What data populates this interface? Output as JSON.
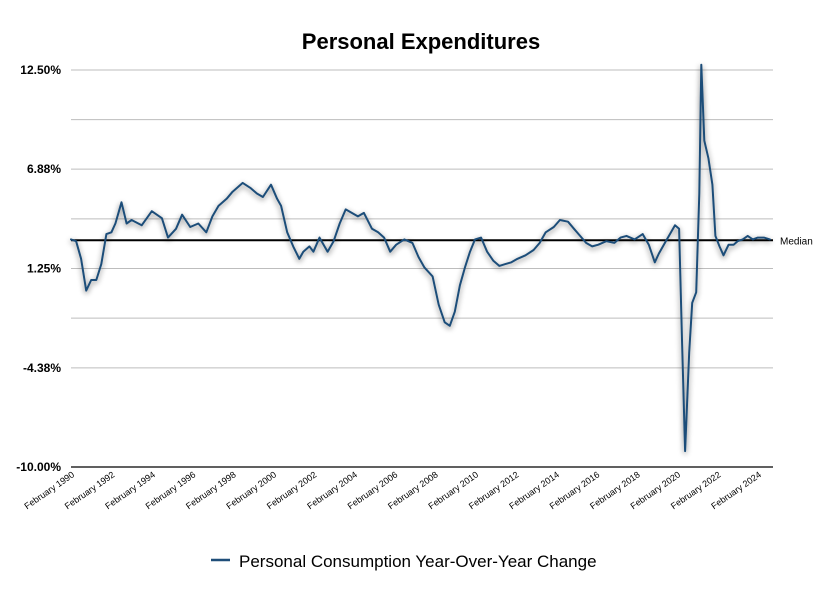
{
  "chart_data": {
    "type": "line",
    "title": "Personal Expenditures",
    "xlabel": "",
    "ylabel": "",
    "ylim": [
      -10.0,
      12.5
    ],
    "grid": true,
    "y_ticks": [
      {
        "value": 12.5,
        "label": "12.50%"
      },
      {
        "value": 6.88,
        "label": "6.88%"
      },
      {
        "value": 1.25,
        "label": "1.25%"
      },
      {
        "value": -4.38,
        "label": "-4.38%"
      },
      {
        "value": -10.0,
        "label": "-10.00%"
      }
    ],
    "extra_gridlines": [
      9.69,
      4.06,
      -1.56
    ],
    "x_range": [
      1990.0,
      2024.75
    ],
    "x_ticks": [
      {
        "year": 1990,
        "label": "February 1990"
      },
      {
        "year": 1992,
        "label": "February 1992"
      },
      {
        "year": 1994,
        "label": "February 1994"
      },
      {
        "year": 1996,
        "label": "February 1996"
      },
      {
        "year": 1998,
        "label": "February 1998"
      },
      {
        "year": 2000,
        "label": "February 2000"
      },
      {
        "year": 2002,
        "label": "February 2002"
      },
      {
        "year": 2004,
        "label": "February 2004"
      },
      {
        "year": 2006,
        "label": "February 2006"
      },
      {
        "year": 2008,
        "label": "February 2008"
      },
      {
        "year": 2010,
        "label": "February 2010"
      },
      {
        "year": 2012,
        "label": "February 2012"
      },
      {
        "year": 2014,
        "label": "February 2014"
      },
      {
        "year": 2016,
        "label": "February 2016"
      },
      {
        "year": 2018,
        "label": "February 2018"
      },
      {
        "year": 2020,
        "label": "February 2020"
      },
      {
        "year": 2022,
        "label": "February 2022"
      },
      {
        "year": 2024,
        "label": "February 2024"
      }
    ],
    "median": {
      "value": 2.85,
      "label": "Median"
    },
    "series": [
      {
        "name": "Personal Consumption Year-Over-Year Change",
        "color": "#1f4e79",
        "x": [
          1990.0,
          1990.25,
          1990.5,
          1990.75,
          1991.0,
          1991.25,
          1991.5,
          1991.75,
          1992.0,
          1992.2,
          1992.5,
          1992.75,
          1993.0,
          1993.5,
          1994.0,
          1994.5,
          1994.8,
          1995.2,
          1995.5,
          1995.9,
          1996.3,
          1996.7,
          1997.0,
          1997.3,
          1997.7,
          1998.0,
          1998.5,
          1998.9,
          1999.2,
          1999.5,
          1999.9,
          2000.2,
          2000.4,
          2000.7,
          2001.0,
          2001.3,
          2001.5,
          2001.8,
          2002.0,
          2002.3,
          2002.7,
          2003.0,
          2003.3,
          2003.6,
          2003.9,
          2004.2,
          2004.5,
          2004.9,
          2005.2,
          2005.5,
          2005.8,
          2006.1,
          2006.5,
          2006.9,
          2007.2,
          2007.5,
          2007.9,
          2008.2,
          2008.5,
          2008.75,
          2009.0,
          2009.25,
          2009.5,
          2009.75,
          2010.0,
          2010.3,
          2010.6,
          2010.9,
          2011.2,
          2011.5,
          2011.8,
          2012.1,
          2012.5,
          2012.9,
          2013.2,
          2013.5,
          2013.9,
          2014.2,
          2014.6,
          2014.9,
          2015.2,
          2015.5,
          2015.8,
          2016.1,
          2016.5,
          2016.9,
          2017.2,
          2017.5,
          2017.9,
          2018.3,
          2018.6,
          2018.9,
          2019.1,
          2019.4,
          2019.7,
          2019.9,
          2020.1,
          2020.25,
          2020.4,
          2020.6,
          2020.75,
          2020.95,
          2021.1,
          2021.2,
          2021.35,
          2021.55,
          2021.75,
          2021.9,
          2022.1,
          2022.3,
          2022.55,
          2022.8,
          2023.0,
          2023.25,
          2023.5,
          2023.75,
          2024.0,
          2024.3,
          2024.6
        ],
        "values": [
          2.9,
          2.8,
          1.8,
          0.0,
          0.6,
          0.6,
          1.5,
          3.2,
          3.3,
          3.8,
          5.0,
          3.8,
          4.0,
          3.7,
          4.5,
          4.1,
          3.0,
          3.5,
          4.3,
          3.6,
          3.8,
          3.3,
          4.2,
          4.8,
          5.2,
          5.6,
          6.1,
          5.8,
          5.5,
          5.3,
          6.0,
          5.2,
          4.8,
          3.3,
          2.5,
          1.8,
          2.2,
          2.5,
          2.2,
          3.0,
          2.2,
          2.8,
          3.8,
          4.6,
          4.4,
          4.2,
          4.4,
          3.5,
          3.3,
          3.0,
          2.2,
          2.6,
          2.9,
          2.7,
          1.9,
          1.3,
          0.8,
          -0.8,
          -1.8,
          -2.0,
          -1.2,
          0.3,
          1.3,
          2.2,
          2.9,
          3.0,
          2.2,
          1.7,
          1.4,
          1.5,
          1.6,
          1.8,
          2.0,
          2.3,
          2.7,
          3.3,
          3.6,
          4.0,
          3.9,
          3.5,
          3.1,
          2.7,
          2.5,
          2.6,
          2.8,
          2.7,
          3.0,
          3.1,
          2.9,
          3.2,
          2.6,
          1.6,
          2.1,
          2.7,
          3.3,
          3.7,
          3.5,
          -3.0,
          -9.1,
          -3.5,
          -0.7,
          -0.1,
          5.5,
          13.0,
          8.5,
          7.5,
          6.0,
          3.1,
          2.5,
          2.0,
          2.6,
          2.6,
          2.8,
          2.9,
          3.1,
          2.9,
          3.0,
          3.0,
          2.9
        ]
      }
    ]
  },
  "legend": {
    "label": "Personal Consumption Year-Over-Year Change"
  }
}
